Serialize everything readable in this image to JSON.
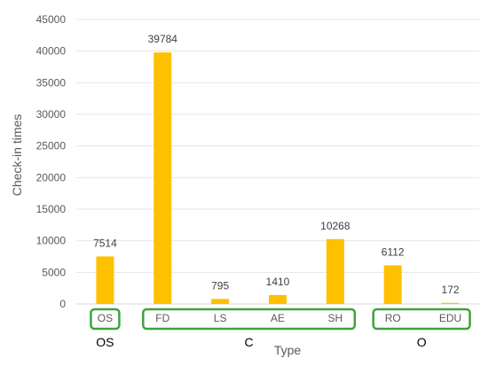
{
  "chart_data": {
    "type": "bar",
    "title": "",
    "xlabel": "Type",
    "ylabel": "Check-in times",
    "ylim": [
      0,
      45000
    ],
    "yticks": [
      0,
      5000,
      10000,
      15000,
      20000,
      25000,
      30000,
      35000,
      40000,
      45000
    ],
    "grid": true,
    "categories": [
      "OS",
      "FD",
      "LS",
      "AE",
      "SH",
      "RO",
      "EDU"
    ],
    "values": [
      7514,
      39784,
      795,
      1410,
      10268,
      6112,
      172
    ],
    "bar_color": "#FFC000",
    "data_labels": true,
    "groups": [
      {
        "label": "OS",
        "categories": [
          "OS"
        ]
      },
      {
        "label": "C",
        "categories": [
          "FD",
          "LS",
          "AE",
          "SH"
        ]
      },
      {
        "label": "O",
        "categories": [
          "RO",
          "EDU"
        ]
      }
    ],
    "group_box_color": "#3CA33C"
  }
}
